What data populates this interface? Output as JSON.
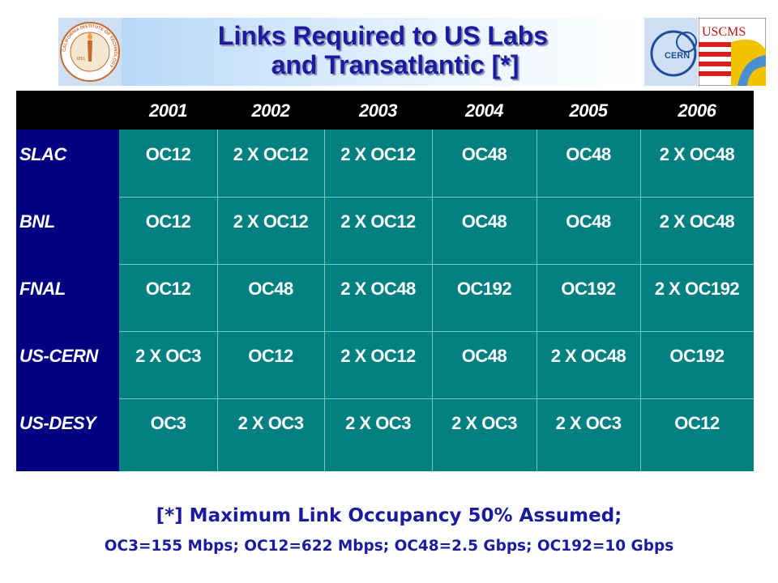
{
  "header": {
    "title_lines": [
      "Links Required to US Labs",
      "and Transatlantic [*]"
    ]
  },
  "logos": {
    "caltech": {
      "ring": "CALIFORNIA INSTITUTE OF TECHNOLOGY",
      "year": "1891"
    },
    "cern": "CERN",
    "uscms": "USCMS"
  },
  "table": {
    "columns": [
      "2001",
      "2002",
      "2003",
      "2004",
      "2005",
      "2006"
    ],
    "rows": [
      {
        "label": "SLAC",
        "cells": [
          "OC12",
          "2 X OC12",
          "2 X OC12",
          "OC48",
          "OC48",
          "2 X OC48"
        ]
      },
      {
        "label": "BNL",
        "cells": [
          "OC12",
          "2 X OC12",
          "2 X OC12",
          "OC48",
          "OC48",
          "2 X OC48"
        ]
      },
      {
        "label": "FNAL",
        "cells": [
          "OC12",
          "OC48",
          "2 X OC48",
          "OC192",
          "OC192",
          "2 X OC192"
        ]
      },
      {
        "label": "US-CERN",
        "cells": [
          "2 X OC3",
          "OC12",
          "2 X OC12",
          "OC48",
          "2 X OC48",
          "OC192"
        ]
      },
      {
        "label": "US-DESY",
        "cells": [
          "OC3",
          "2 X OC3",
          "2 X OC3",
          "2 X OC3",
          "2 X OC3",
          "OC12"
        ]
      }
    ]
  },
  "footer": {
    "lines": [
      "[*] Maximum Link Occupancy 50% Assumed;",
      "OC3=155 Mbps; OC12=622 Mbps; OC48=2.5 Gbps; OC192=10 Gbps"
    ]
  }
}
